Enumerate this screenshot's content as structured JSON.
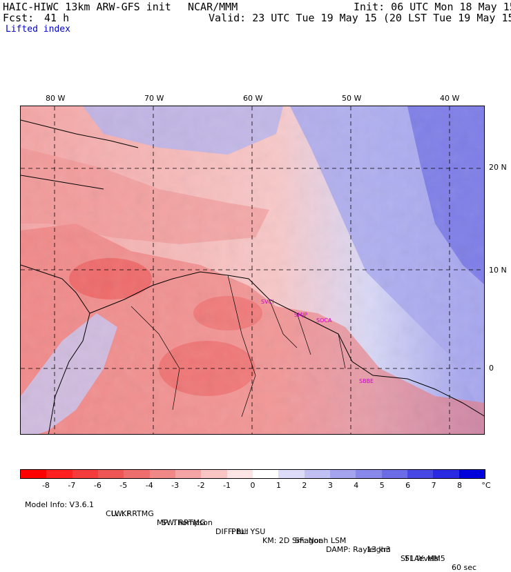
{
  "header": {
    "title": "HAIC-HIWC 13km ARW-GFS init",
    "org": "NCAR/MMM",
    "init": "Init: 06 UTC Mon 18 May 15",
    "fcst_label": "Fcst:",
    "fcst_value": "41 h",
    "valid": "Valid: 23 UTC Tue 19 May 15 (20 LST Tue 19 May 15)",
    "field": "Lifted index"
  },
  "map": {
    "lon_labels": [
      "80 W",
      "70 W",
      "60 W",
      "50 W",
      "40 W"
    ],
    "lat_labels": [
      "20 N",
      "10 N",
      "0"
    ],
    "stations": [
      "SVCI",
      "SMJP",
      "SOCA",
      "SBBE"
    ],
    "colors": {
      "land_warm": "#f08080",
      "ocean_cool": "#9090ee",
      "neutral": "#f5e8e8"
    }
  },
  "colorbar": {
    "ticks": [
      "-8",
      "-7",
      "-6",
      "-5",
      "-4",
      "-3",
      "-2",
      "-1",
      "0",
      "1",
      "2",
      "3",
      "4",
      "5",
      "6",
      "7",
      "8"
    ],
    "unit": "°C",
    "colors": [
      "#ff0000",
      "#ff2020",
      "#f43c3c",
      "#ee5555",
      "#ee6e6e",
      "#f08888",
      "#f4a4a4",
      "#f8c4c4",
      "#fce4e4",
      "#ffffff",
      "#dcdcf8",
      "#c0c0f2",
      "#a4a4ee",
      "#8888ea",
      "#6c6ce6",
      "#4848e4",
      "#2a2ae2",
      "#0000dd"
    ]
  },
  "model_info": {
    "line1": [
      "Model Info: V3.6.1",
      "CU: KF",
      "MP: Thompson",
      "PBL: YSU",
      "SF: Noah LSM",
      "13 km",
      "51 levels",
      "60 sec"
    ],
    "line2": [
      "LW: RRTMG",
      "SW: RRTMG",
      "DIFF: full",
      "KM: 2D Smagor",
      "DAMP: Rayleigh3",
      "SFLAY: MM5"
    ]
  }
}
